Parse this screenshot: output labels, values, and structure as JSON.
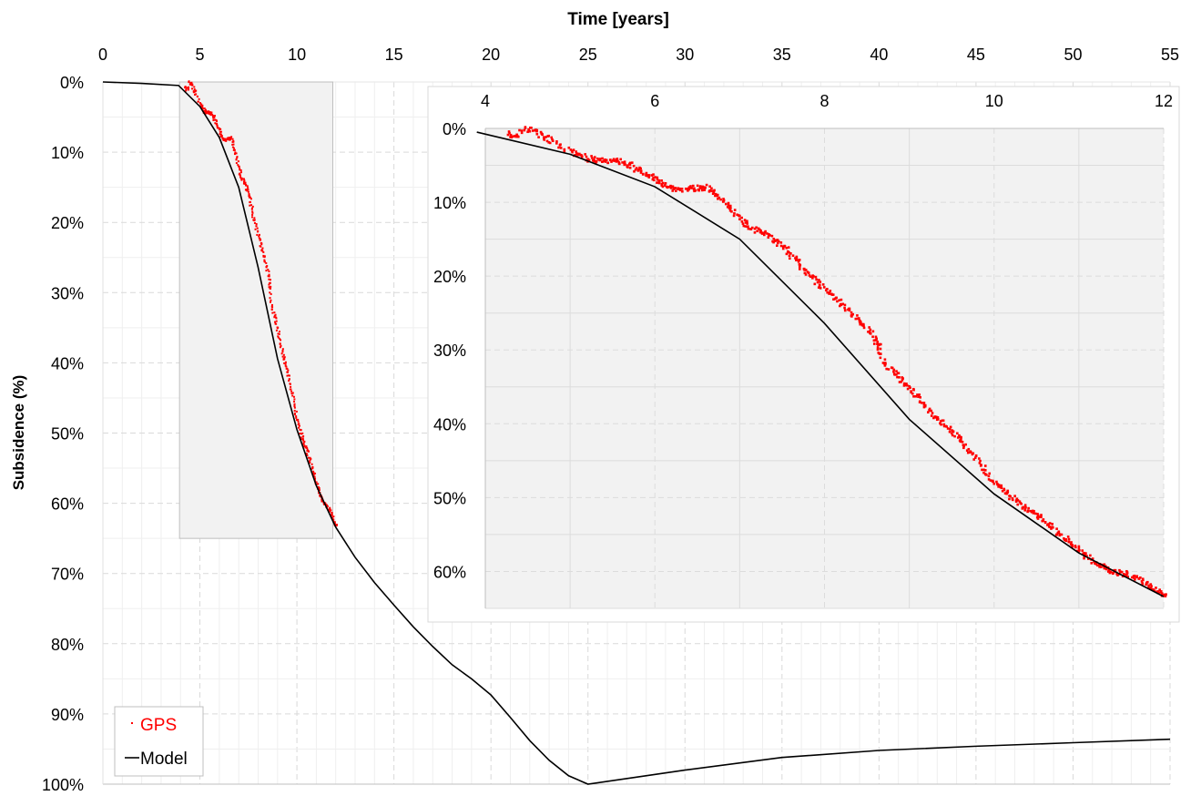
{
  "chart_data": [
    {
      "type": "scatter+line",
      "xlabel": "Time [years]",
      "ylabel": "Subsidence (%)",
      "xlim": [
        0,
        55
      ],
      "ylim": [
        0,
        100
      ],
      "x_axis_position": "top",
      "y_axis_inverted": true,
      "x_ticks": [
        0,
        5,
        10,
        15,
        20,
        25,
        30,
        35,
        40,
        45,
        50,
        55
      ],
      "y_ticks": [
        "0%",
        "10%",
        "20%",
        "30%",
        "40%",
        "50%",
        "60%",
        "70%",
        "80%",
        "90%",
        "100%"
      ],
      "grid": true,
      "legend": {
        "placement": "bottom-left",
        "entries": [
          "GPS",
          "Model"
        ]
      },
      "highlight_region": {
        "x": [
          3.95,
          11.85
        ],
        "y": [
          0,
          65
        ]
      },
      "colors": {
        "GPS": "#ff0000",
        "Model": "#000000",
        "inset_background": "#f2f2f2"
      },
      "series": [
        {
          "name": "GPS",
          "type": "scatter",
          "ref": "gps_points"
        },
        {
          "name": "Model",
          "type": "line",
          "ref": "model_points"
        }
      ]
    },
    {
      "type": "scatter+line",
      "role": "inset",
      "xlim": [
        4,
        12
      ],
      "ylim": [
        0,
        65
      ],
      "y_axis_inverted": true,
      "x_ticks": [
        4,
        6,
        8,
        10,
        12
      ],
      "y_ticks": [
        "0%",
        "10%",
        "20%",
        "30%",
        "40%",
        "50%",
        "60%"
      ],
      "grid": true
    }
  ],
  "model_points": [
    [
      0,
      0
    ],
    [
      2,
      0.2
    ],
    [
      3.9,
      0.5
    ],
    [
      5,
      3.5
    ],
    [
      6,
      7.9
    ],
    [
      7,
      15
    ],
    [
      8,
      26.4
    ],
    [
      9,
      39.4
    ],
    [
      10,
      49.5
    ],
    [
      11,
      57.5
    ],
    [
      12,
      63.4
    ],
    [
      13,
      67.7
    ],
    [
      14,
      71.3
    ],
    [
      15,
      74.5
    ],
    [
      16,
      77.6
    ],
    [
      17,
      80.4
    ],
    [
      18,
      83
    ],
    [
      19,
      85
    ],
    [
      20,
      87.3
    ],
    [
      21,
      90.5
    ],
    [
      22,
      93.8
    ],
    [
      23,
      96.6
    ],
    [
      24,
      98.8
    ],
    [
      25,
      100
    ],
    [
      27.5,
      99
    ],
    [
      30,
      98
    ],
    [
      35,
      96.2
    ],
    [
      40,
      95.2
    ],
    [
      45,
      94.6
    ],
    [
      50,
      94.1
    ],
    [
      55,
      93.6
    ]
  ],
  "gps_points": [
    [
      4.3,
      0.7
    ],
    [
      4.35,
      1.2
    ],
    [
      4.5,
      0
    ],
    [
      4.6,
      0.3
    ],
    [
      4.7,
      1.2
    ],
    [
      4.8,
      1.8
    ],
    [
      5,
      3.1
    ],
    [
      5.1,
      3.6
    ],
    [
      5.2,
      4.0
    ],
    [
      5.3,
      4.3
    ],
    [
      5.4,
      4.3
    ],
    [
      5.5,
      4.4
    ],
    [
      5.6,
      4.6
    ],
    [
      5.7,
      5.0
    ],
    [
      5.8,
      5.6
    ],
    [
      5.9,
      6.2
    ],
    [
      6,
      6.8
    ],
    [
      6.1,
      7.5
    ],
    [
      6.2,
      8.1
    ],
    [
      6.3,
      8.3
    ],
    [
      6.4,
      8.2
    ],
    [
      6.5,
      8.1
    ],
    [
      6.6,
      8.0
    ],
    [
      6.7,
      8.6
    ],
    [
      6.8,
      9.8
    ],
    [
      6.9,
      11
    ],
    [
      7,
      12.2
    ],
    [
      7.1,
      13.0
    ],
    [
      7.2,
      13.8
    ],
    [
      7.3,
      14.4
    ],
    [
      7.4,
      15.0
    ],
    [
      7.5,
      15.9
    ],
    [
      7.6,
      17
    ],
    [
      7.7,
      18.2
    ],
    [
      7.8,
      19.5
    ],
    [
      7.9,
      20.6
    ],
    [
      8,
      21.8
    ],
    [
      8.1,
      22.8
    ],
    [
      8.2,
      23.9
    ],
    [
      8.3,
      24.9
    ],
    [
      8.4,
      25.9
    ],
    [
      8.5,
      27
    ],
    [
      8.6,
      28.6
    ],
    [
      8.65,
      29.5
    ],
    [
      8.7,
      31.8
    ],
    [
      8.8,
      33
    ],
    [
      8.9,
      34
    ],
    [
      9,
      35.2
    ],
    [
      9.1,
      36.5
    ],
    [
      9.2,
      37.8
    ],
    [
      9.3,
      39
    ],
    [
      9.4,
      40
    ],
    [
      9.5,
      41.1
    ],
    [
      9.6,
      42.2
    ],
    [
      9.7,
      43.6
    ],
    [
      9.8,
      45
    ],
    [
      9.9,
      46.5
    ],
    [
      10,
      47.9
    ],
    [
      10.1,
      48.9
    ],
    [
      10.2,
      49.9
    ],
    [
      10.3,
      50.8
    ],
    [
      10.4,
      51.5
    ],
    [
      10.5,
      52.2
    ],
    [
      10.6,
      53.2
    ],
    [
      10.7,
      54.2
    ],
    [
      10.8,
      55.2
    ],
    [
      10.9,
      56.1
    ],
    [
      11,
      57.1
    ],
    [
      11.1,
      58
    ],
    [
      11.2,
      58.9
    ],
    [
      11.3,
      59.6
    ],
    [
      11.4,
      60
    ],
    [
      11.5,
      60.2
    ],
    [
      11.6,
      60.4
    ],
    [
      11.7,
      61
    ],
    [
      11.8,
      61.8
    ],
    [
      11.9,
      62.3
    ],
    [
      12,
      63
    ]
  ]
}
